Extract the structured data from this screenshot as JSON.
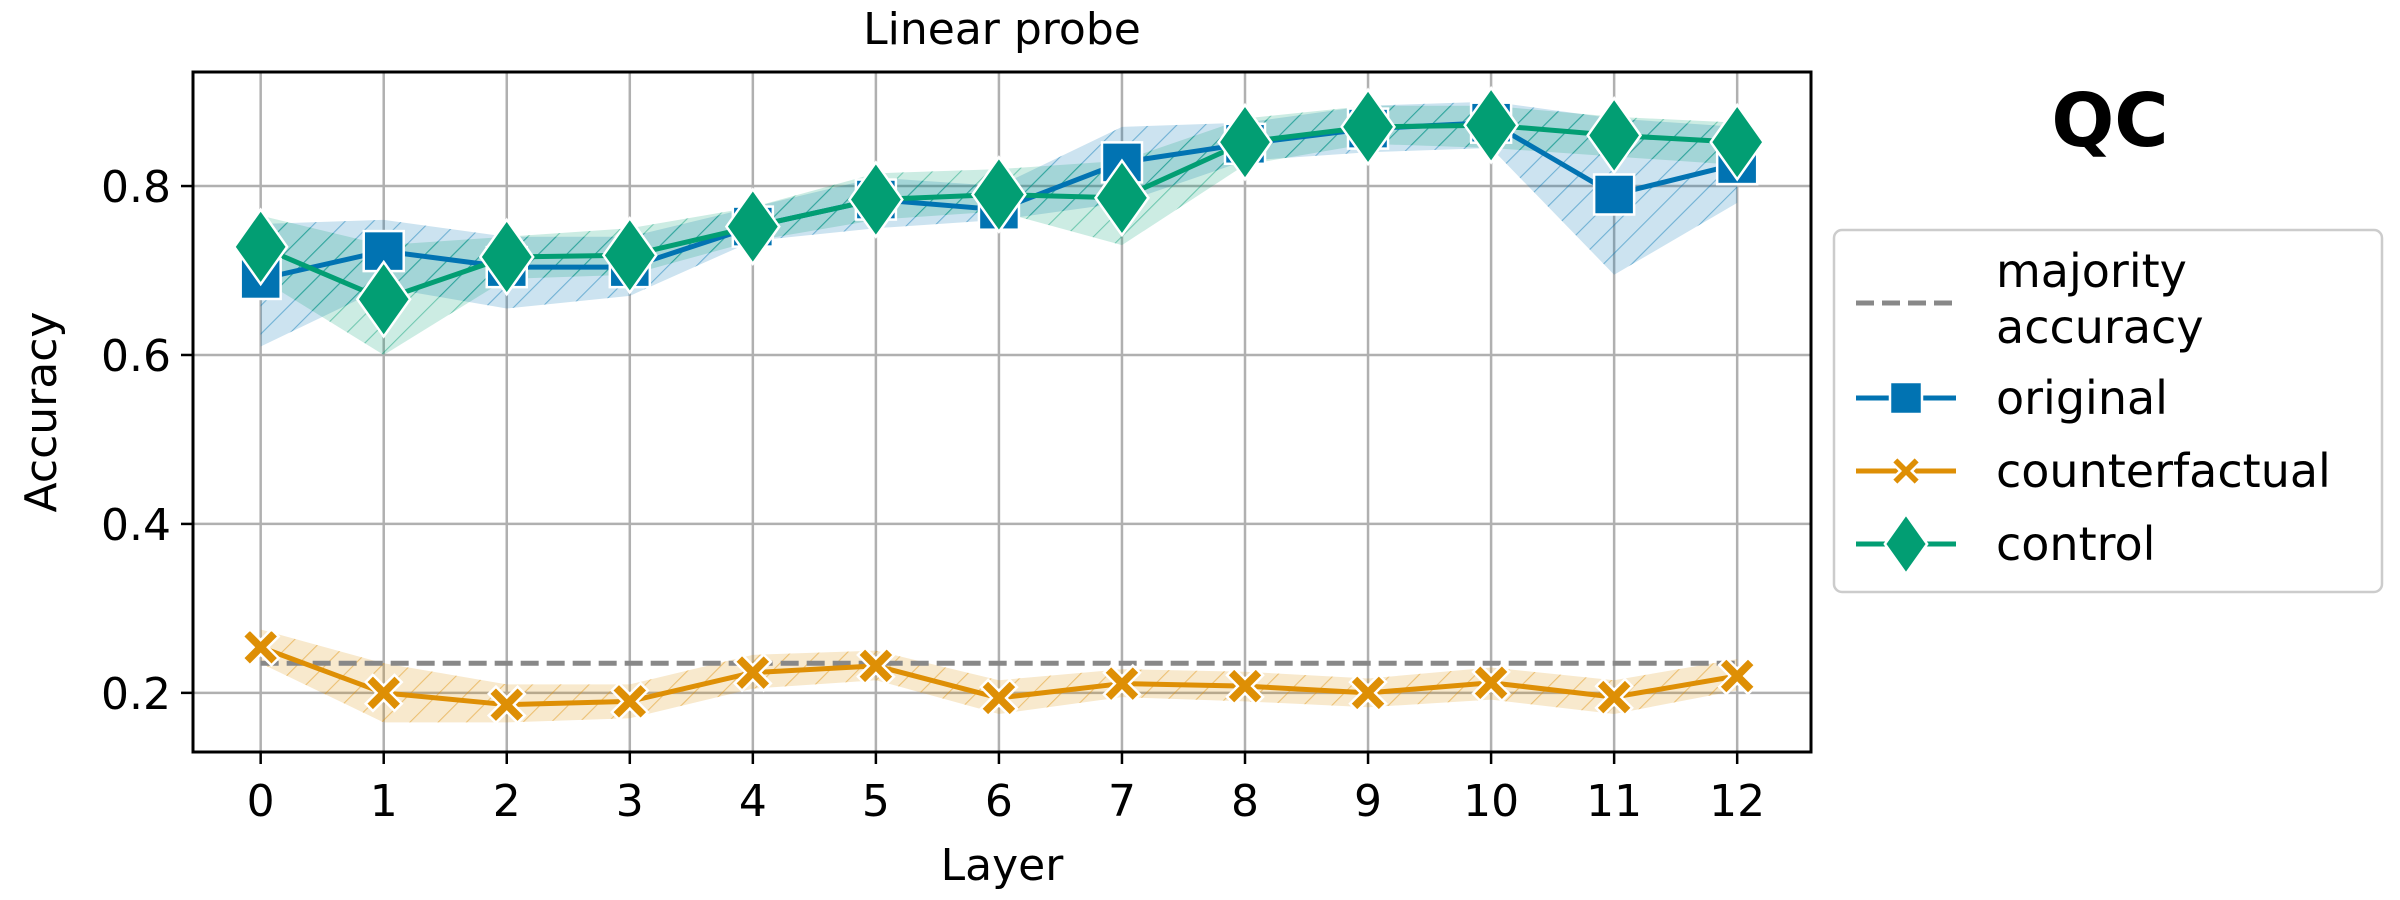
{
  "chart_data": {
    "type": "line",
    "title": "Linear probe",
    "panel_label": "QC",
    "xlabel": "Layer",
    "ylabel": "Accuracy",
    "x": [
      0,
      1,
      2,
      3,
      4,
      5,
      6,
      7,
      8,
      9,
      10,
      11,
      12
    ],
    "x_ticks": [
      "0",
      "1",
      "2",
      "3",
      "4",
      "5",
      "6",
      "7",
      "8",
      "9",
      "10",
      "11",
      "12"
    ],
    "y_ticks": [
      "0.2",
      "0.4",
      "0.6",
      "0.8"
    ],
    "xlim": [
      -0.55,
      12.6
    ],
    "ylim": [
      0.13,
      0.935
    ],
    "grid": true,
    "legend_position": "right, outside plot",
    "majority_accuracy": {
      "name": "majority\naccuracy",
      "value": 0.235,
      "color": "#888888",
      "style": "dashed"
    },
    "series": [
      {
        "name": "original",
        "marker": "square",
        "color": "#0173b2",
        "values": [
          0.69,
          0.723,
          0.704,
          0.704,
          0.752,
          0.784,
          0.772,
          0.828,
          0.85,
          0.868,
          0.875,
          0.79,
          0.826
        ],
        "band_lower": [
          0.61,
          0.68,
          0.655,
          0.67,
          0.735,
          0.75,
          0.76,
          0.78,
          0.83,
          0.84,
          0.845,
          0.695,
          0.78
        ],
        "band_upper": [
          0.755,
          0.76,
          0.74,
          0.74,
          0.775,
          0.81,
          0.8,
          0.87,
          0.875,
          0.895,
          0.9,
          0.88,
          0.87
        ]
      },
      {
        "name": "counterfactual",
        "marker": "x",
        "color": "#de8f05",
        "values": [
          0.254,
          0.2,
          0.186,
          0.19,
          0.224,
          0.232,
          0.194,
          0.211,
          0.208,
          0.2,
          0.212,
          0.195,
          0.22
        ],
        "band_lower": [
          0.235,
          0.165,
          0.165,
          0.17,
          0.205,
          0.215,
          0.175,
          0.195,
          0.19,
          0.183,
          0.192,
          0.175,
          0.203
        ],
        "band_upper": [
          0.275,
          0.235,
          0.21,
          0.21,
          0.245,
          0.25,
          0.215,
          0.228,
          0.225,
          0.217,
          0.23,
          0.215,
          0.24
        ]
      },
      {
        "name": "control",
        "marker": "diamond",
        "color": "#029e73",
        "values": [
          0.728,
          0.666,
          0.716,
          0.718,
          0.752,
          0.784,
          0.79,
          0.786,
          0.852,
          0.87,
          0.872,
          0.86,
          0.852
        ],
        "band_lower": [
          0.69,
          0.6,
          0.69,
          0.695,
          0.735,
          0.76,
          0.77,
          0.73,
          0.825,
          0.85,
          0.845,
          0.835,
          0.825
        ],
        "band_upper": [
          0.765,
          0.73,
          0.74,
          0.75,
          0.775,
          0.815,
          0.82,
          0.83,
          0.88,
          0.895,
          0.895,
          0.882,
          0.875
        ]
      }
    ]
  }
}
